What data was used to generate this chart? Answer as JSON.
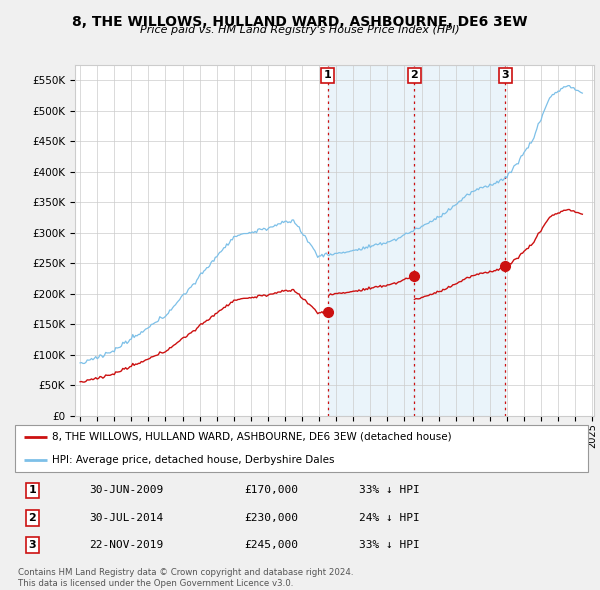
{
  "title": "8, THE WILLOWS, HULLAND WARD, ASHBOURNE, DE6 3EW",
  "subtitle": "Price paid vs. HM Land Registry's House Price Index (HPI)",
  "ylim": [
    0,
    575000
  ],
  "yticks": [
    0,
    50000,
    100000,
    150000,
    200000,
    250000,
    300000,
    350000,
    400000,
    450000,
    500000,
    550000
  ],
  "hpi_color": "#7dc0e8",
  "hpi_fill_color": "#ddeef8",
  "price_color": "#cc1111",
  "vline_color": "#cc1111",
  "background_color": "#f0f0f0",
  "plot_bg_color": "#ffffff",
  "legend_label_price": "8, THE WILLOWS, HULLAND WARD, ASHBOURNE, DE6 3EW (detached house)",
  "legend_label_hpi": "HPI: Average price, detached house, Derbyshire Dales",
  "transactions": [
    {
      "num": 1,
      "date": "30-JUN-2009",
      "price": 170000,
      "pct": "33%",
      "dir": "↓",
      "x_year": 2009.5
    },
    {
      "num": 2,
      "date": "30-JUL-2014",
      "price": 230000,
      "pct": "24%",
      "dir": "↓",
      "x_year": 2014.583
    },
    {
      "num": 3,
      "date": "22-NOV-2019",
      "price": 245000,
      "pct": "33%",
      "dir": "↓",
      "x_year": 2019.9
    }
  ],
  "footer": "Contains HM Land Registry data © Crown copyright and database right 2024.\nThis data is licensed under the Open Government Licence v3.0.",
  "xmin": 1995.0,
  "xmax": 2025.0
}
